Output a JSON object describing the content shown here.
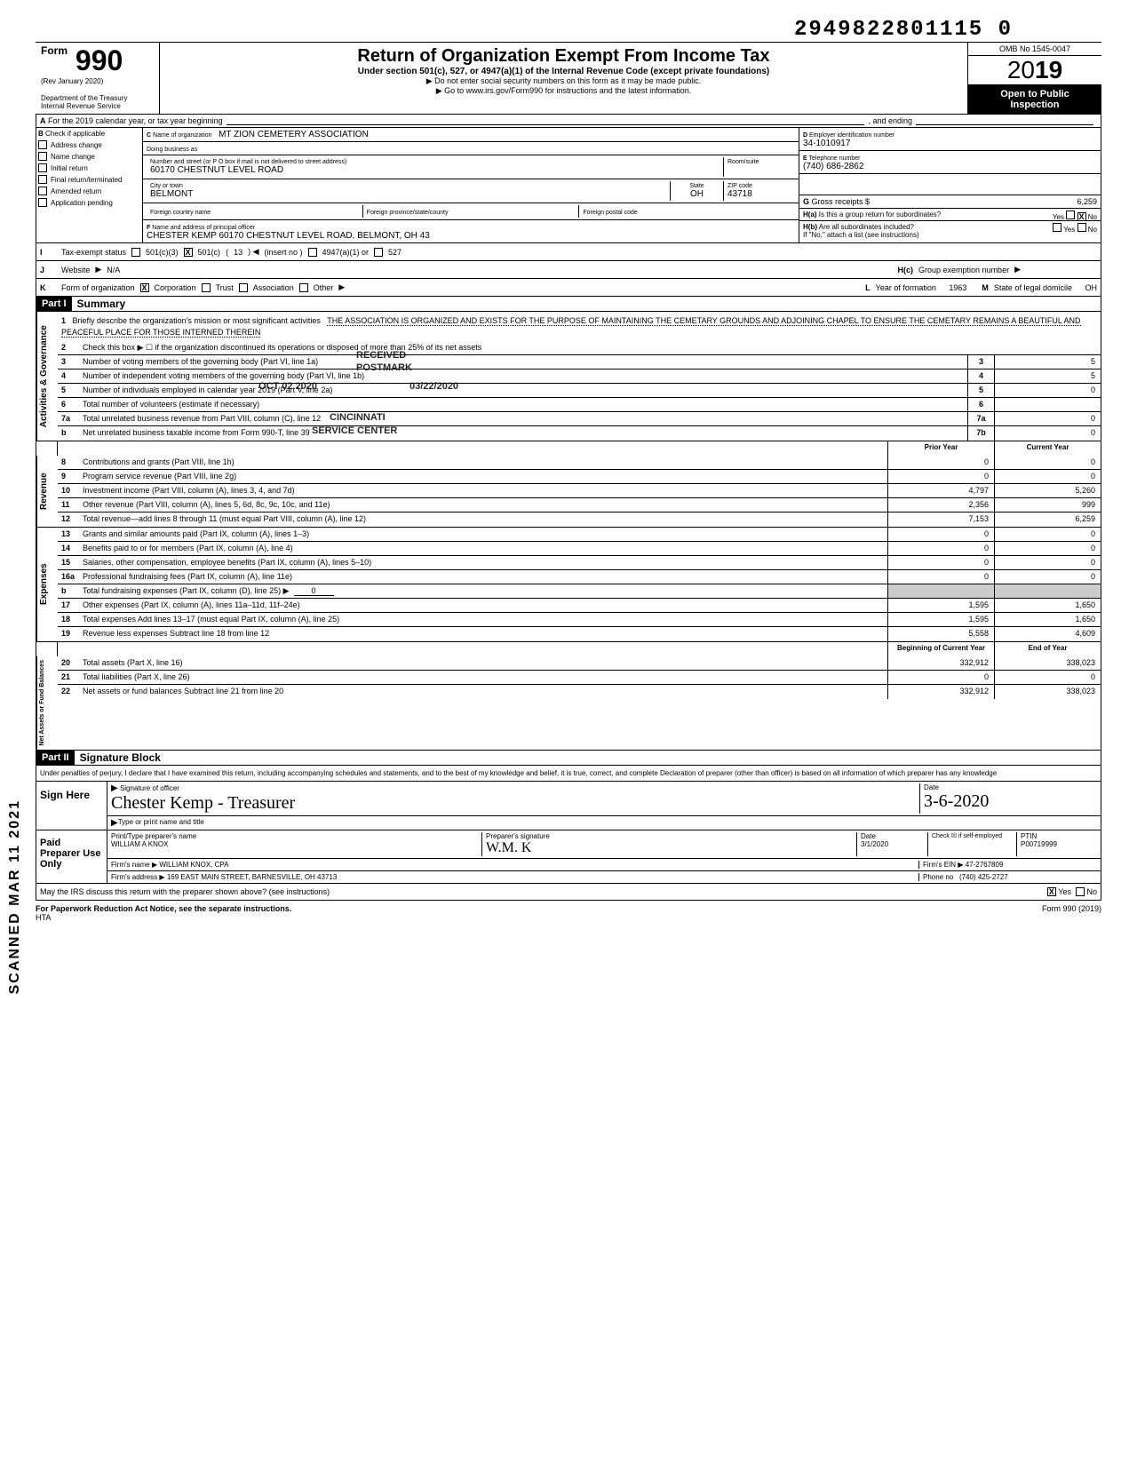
{
  "doc": {
    "number_top": "2949822801115 0",
    "omb": "OMB No 1545-0047",
    "form_label": "Form",
    "form_number": "990",
    "rev": "(Rev January 2020)",
    "dept": "Department of the Treasury",
    "irs": "Internal Revenue Service",
    "title": "Return of Organization Exempt From Income Tax",
    "subtitle": "Under section 501(c), 527, or 4947(a)(1) of the Internal Revenue Code (except private foundations)",
    "note1": "Do not enter social security numbers on this form as it may be made public.",
    "note2": "Go to www.irs.gov/Form990 for instructions and the latest information.",
    "year_prefix": "20",
    "year_suffix": "19",
    "open_public": "Open to Public",
    "inspection": "Inspection",
    "side_text": "SCANNED MAR 11 2021"
  },
  "row_a": {
    "label": "A",
    "text": "For the 2019 calendar year, or tax year beginning",
    "ending": ", and ending"
  },
  "section_b": {
    "label": "B",
    "check_label": "Check if applicable",
    "checks": [
      "Address change",
      "Name change",
      "Initial return",
      "Final return/terminated",
      "Amended return",
      "Application pending"
    ],
    "c_label": "C",
    "name_label": "Name of organization",
    "name": "MT ZION CEMETERY ASSOCIATION",
    "dba_label": "Doing business as",
    "dba": "",
    "street_label": "Number and street (or P O box if mail is not delivered to street address)",
    "street": "60170 CHESTNUT LEVEL ROAD",
    "room_label": "Room/suite",
    "room": "",
    "city_label": "City or town",
    "city": "BELMONT",
    "state_label": "State",
    "state": "OH",
    "zip_label": "ZIP code",
    "zip": "43718",
    "foreign_country_label": "Foreign country name",
    "foreign_prov_label": "Foreign province/state/county",
    "foreign_postal_label": "Foreign postal code",
    "d_label": "D",
    "ein_label": "Employer identification number",
    "ein": "34-1010917",
    "e_label": "E",
    "phone_label": "Telephone number",
    "phone": "(740) 686-2862",
    "g_label": "G",
    "gross_label": "Gross receipts $",
    "gross": "6,259",
    "f_label": "F",
    "officer_label": "Name and address of principal officer",
    "officer": "CHESTER KEMP 60170 CHESTNUT LEVEL ROAD, BELMONT, OH 43",
    "ha_label": "H(a)",
    "ha_text": "Is this a group return for subordinates?",
    "ha_yes": "Yes",
    "ha_no": "No",
    "hb_label": "H(b)",
    "hb_text": "Are all subordinates included?",
    "hb_yes": "Yes",
    "hb_no": "No",
    "hb_note": "If \"No,\" attach a list (see instructions)"
  },
  "row_i": {
    "label": "I",
    "text": "Tax-exempt status",
    "opt1": "501(c)(3)",
    "opt2": "501(c)",
    "opt2_num": "13",
    "opt2_insert": "(insert no )",
    "opt3": "4947(a)(1) or",
    "opt4": "527"
  },
  "row_j": {
    "label": "J",
    "text": "Website",
    "value": "N/A",
    "hc_label": "H(c)",
    "hc_text": "Group exemption number"
  },
  "row_k": {
    "label": "K",
    "text": "Form of organization",
    "opts": [
      "Corporation",
      "Trust",
      "Association",
      "Other"
    ],
    "l_label": "L",
    "l_text": "Year of formation",
    "l_value": "1963",
    "m_label": "M",
    "m_text": "State of legal domicile",
    "m_value": "OH"
  },
  "part1": {
    "header": "Part I",
    "title": "Summary",
    "sections": {
      "activities": "Activities & Governance",
      "revenue": "Revenue",
      "expenses": "Expenses",
      "net": "Net Assets or Fund Balances"
    },
    "line1_label": "1",
    "line1_text": "Briefly describe the organization's mission or most significant activities",
    "mission": "THE ASSOCIATION IS ORGANIZED AND EXISTS FOR THE PURPOSE OF MAINTAINING THE CEMETARY GROUNDS AND ADJOINING CHAPEL TO ENSURE THE CEMETARY REMAINS A BEAUTIFUL AND PEACEFUL PLACE FOR THOSE INTERNED THEREIN",
    "line2": "Check this box ▶ ☐ if the organization discontinued its operations or disposed of more than 25% of its net assets",
    "lines_gov": [
      {
        "n": "3",
        "d": "Number of voting members of the governing body (Part VI, line 1a)",
        "b": "3",
        "v": "5"
      },
      {
        "n": "4",
        "d": "Number of independent voting members of the governing body (Part VI, line 1b)",
        "b": "4",
        "v": "5"
      },
      {
        "n": "5",
        "d": "Number of individuals employed in calendar year 2019 (Part V, line 2a)",
        "b": "5",
        "v": "0"
      },
      {
        "n": "6",
        "d": "Total number of volunteers (estimate if necessary)",
        "b": "6",
        "v": ""
      },
      {
        "n": "7a",
        "d": "Total unrelated business revenue from Part VIII, column (C), line 12",
        "b": "7a",
        "v": "0"
      },
      {
        "n": "b",
        "d": "Net unrelated business taxable income from Form 990-T, line 39",
        "b": "7b",
        "v": "0"
      }
    ],
    "col_prior": "Prior Year",
    "col_current": "Current Year",
    "lines_rev": [
      {
        "n": "8",
        "d": "Contributions and grants (Part VIII, line 1h)",
        "p": "0",
        "c": "0"
      },
      {
        "n": "9",
        "d": "Program service revenue (Part VIII, line 2g)",
        "p": "0",
        "c": "0"
      },
      {
        "n": "10",
        "d": "Investment income (Part VIII, column (A), lines 3, 4, and 7d)",
        "p": "4,797",
        "c": "5,260"
      },
      {
        "n": "11",
        "d": "Other revenue (Part VIII, column (A), lines 5, 6d, 8c, 9c, 10c, and 11e)",
        "p": "2,356",
        "c": "999"
      },
      {
        "n": "12",
        "d": "Total revenue—add lines 8 through 11 (must equal Part VIII, column (A), line 12)",
        "p": "7,153",
        "c": "6,259"
      }
    ],
    "lines_exp": [
      {
        "n": "13",
        "d": "Grants and similar amounts paid (Part IX, column (A), lines 1–3)",
        "p": "0",
        "c": "0"
      },
      {
        "n": "14",
        "d": "Benefits paid to or for members (Part IX, column (A), line 4)",
        "p": "0",
        "c": "0"
      },
      {
        "n": "15",
        "d": "Salaries, other compensation, employee benefits (Part IX, column (A), lines 5–10)",
        "p": "0",
        "c": "0"
      },
      {
        "n": "16a",
        "d": "Professional fundraising fees (Part IX, column (A), line 11e)",
        "p": "0",
        "c": "0"
      },
      {
        "n": "b",
        "d": "Total fundraising expenses (Part IX, column (D), line 25) ▶",
        "p": "",
        "c": "",
        "inline": "0"
      },
      {
        "n": "17",
        "d": "Other expenses (Part IX, column (A), lines 11a–11d, 11f–24e)",
        "p": "1,595",
        "c": "1,650"
      },
      {
        "n": "18",
        "d": "Total expenses Add lines 13–17 (must equal Part IX, column (A), line 25)",
        "p": "1,595",
        "c": "1,650"
      },
      {
        "n": "19",
        "d": "Revenue less expenses Subtract line 18 from line 12",
        "p": "5,558",
        "c": "4,609"
      }
    ],
    "col_begin": "Beginning of Current Year",
    "col_end": "End of Year",
    "lines_net": [
      {
        "n": "20",
        "d": "Total assets (Part X, line 16)",
        "p": "332,912",
        "c": "338,023"
      },
      {
        "n": "21",
        "d": "Total liabilities (Part X, line 26)",
        "p": "0",
        "c": "0"
      },
      {
        "n": "22",
        "d": "Net assets or fund balances Subtract line 21 from line 20",
        "p": "332,912",
        "c": "338,023"
      }
    ]
  },
  "part2": {
    "header": "Part II",
    "title": "Signature Block",
    "declare": "Under penalties of perjury, I declare that I have examined this return, including accompanying schedules and statements, and to the best of my knowledge and belief, it is true, correct, and complete Declaration of preparer (other than officer) is based on all information of which preparer has any knowledge",
    "sign_here": "Sign Here",
    "sig_label": "Signature of officer",
    "sig_value": "Chester Kemp - Treasurer",
    "date_label": "Date",
    "date_value": "3-6-2020",
    "type_label": "Type or print name and title",
    "paid": "Paid Preparer Use Only",
    "prep_name_label": "Print/Type preparer's name",
    "prep_name": "WILLIAM A KNOX",
    "prep_sig_label": "Preparer's signature",
    "prep_date_label": "Date",
    "prep_date": "3/1/2020",
    "check_self": "Check ☒ if self-employed",
    "ptin_label": "PTIN",
    "ptin": "P00719999",
    "firm_name_label": "Firm's name",
    "firm_name": "WILLIAM KNOX, CPA",
    "firm_ein_label": "Firm's EIN",
    "firm_ein": "47-2767809",
    "firm_addr_label": "Firm's address",
    "firm_addr": "169 EAST MAIN STREET, BARNESVILLE, OH 43713",
    "phone_label": "Phone no",
    "phone": "(740) 425-2727",
    "discuss": "May the IRS discuss this return with the preparer shown above? (see instructions)",
    "yes": "Yes",
    "no": "No"
  },
  "footer": {
    "left": "For Paperwork Reduction Act Notice, see the separate instructions.",
    "hta": "HTA",
    "right": "Form 990 (2019)"
  },
  "stamps": {
    "received": "RECEIVED",
    "postmark": "POSTMARK",
    "date_stamp": "03/22/2020",
    "cincinnati": "CINCINNATI",
    "service": "SERVICE CENTER",
    "oct": "OCT 02 2020"
  },
  "colors": {
    "black": "#000000",
    "white": "#ffffff",
    "gray": "#cccccc"
  }
}
